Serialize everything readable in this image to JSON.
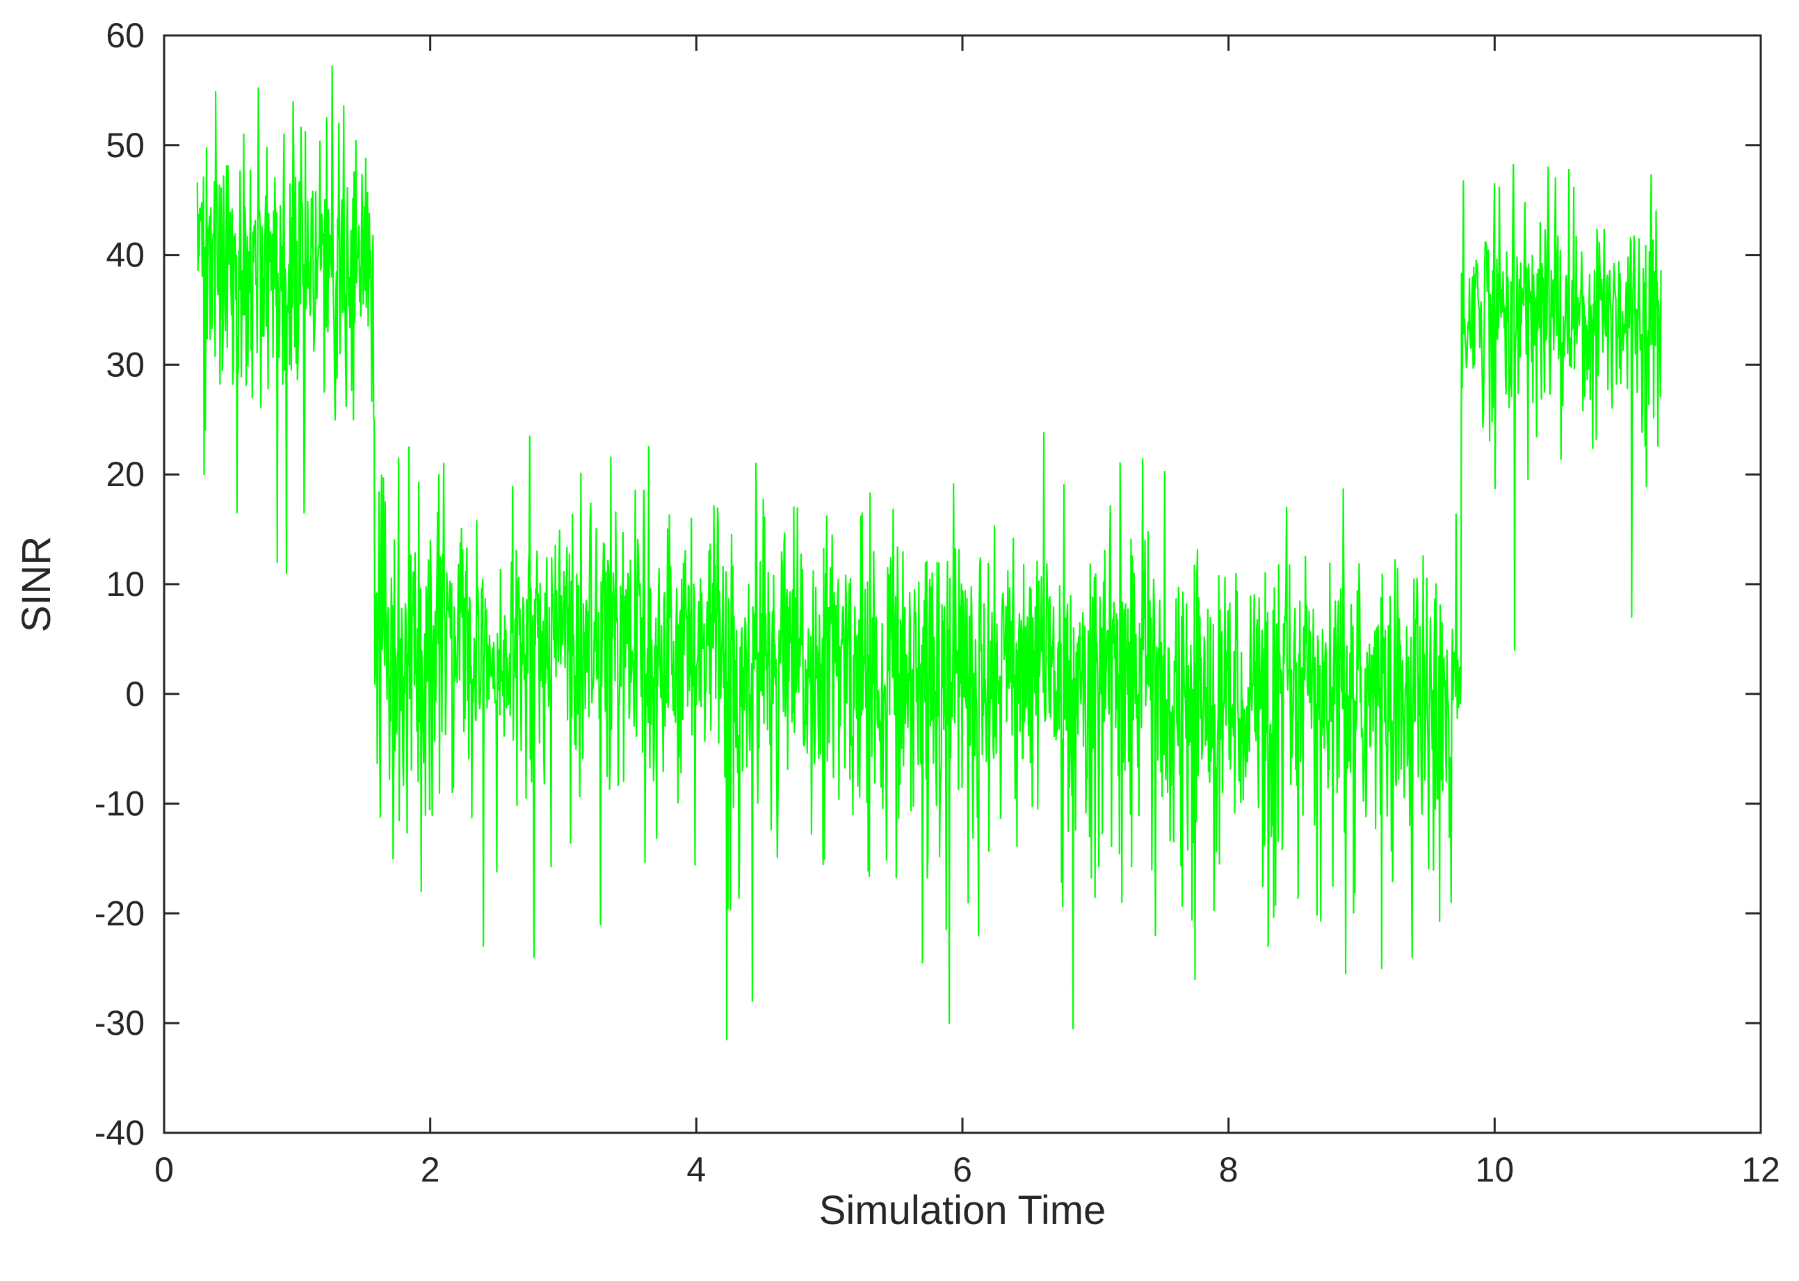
{
  "chart_data": {
    "type": "line",
    "title": "",
    "xlabel": "Simulation Time",
    "ylabel": "SINR",
    "xlim": [
      0,
      12
    ],
    "ylim": [
      -40,
      60
    ],
    "x_ticks": [
      0,
      2,
      4,
      6,
      8,
      10,
      12
    ],
    "y_ticks": [
      -40,
      -30,
      -20,
      -10,
      0,
      10,
      20,
      30,
      40,
      50,
      60
    ],
    "grid": false,
    "legend": "none",
    "series_color": "#00ff00",
    "axes_color": "#262626",
    "series": [
      {
        "x_start": 0.25,
        "x_end": 11.25,
        "segments": [
          {
            "x_from": 0.25,
            "x_to": 1.58,
            "mean_sinr": 40,
            "spread": 6.5
          },
          {
            "x_from": 1.58,
            "x_to": 1.65,
            "mean_sinr": 8,
            "spread": 8
          },
          {
            "x_from": 1.65,
            "x_to": 4.2,
            "mean_sinr": 5,
            "spread": 7.5
          },
          {
            "x_from": 4.2,
            "x_to": 7.5,
            "mean_sinr": 2.5,
            "spread": 7.5
          },
          {
            "x_from": 7.5,
            "x_to": 9.75,
            "mean_sinr": 0,
            "spread": 7
          },
          {
            "x_from": 9.75,
            "x_to": 11.25,
            "mean_sinr": 35,
            "spread": 5.5
          }
        ],
        "peaks": [
          {
            "x": 0.3,
            "y": 51
          },
          {
            "x": 0.6,
            "y": 51
          },
          {
            "x": 0.9,
            "y": 51
          },
          {
            "x": 1.22,
            "y": 52.5
          },
          {
            "x": 1.84,
            "y": 22.5
          },
          {
            "x": 2.1,
            "y": 21
          },
          {
            "x": 4.45,
            "y": 21
          },
          {
            "x": 10.0,
            "y": 46.5
          },
          {
            "x": 10.4,
            "y": 48
          }
        ],
        "troughs": [
          {
            "x": 0.3,
            "y": 20
          },
          {
            "x": 0.55,
            "y": 16.5
          },
          {
            "x": 0.85,
            "y": 12
          },
          {
            "x": 0.92,
            "y": 11
          },
          {
            "x": 1.05,
            "y": 16.5
          },
          {
            "x": 1.72,
            "y": -15
          },
          {
            "x": 1.93,
            "y": -18
          },
          {
            "x": 2.4,
            "y": -23
          },
          {
            "x": 2.78,
            "y": -24
          },
          {
            "x": 3.28,
            "y": -21
          },
          {
            "x": 4.23,
            "y": -31.5
          },
          {
            "x": 4.42,
            "y": -28
          },
          {
            "x": 5.7,
            "y": -24.5
          },
          {
            "x": 5.9,
            "y": -30
          },
          {
            "x": 6.12,
            "y": -22
          },
          {
            "x": 6.83,
            "y": -30.5
          },
          {
            "x": 7.45,
            "y": -22
          },
          {
            "x": 7.75,
            "y": -26
          },
          {
            "x": 8.3,
            "y": -23
          },
          {
            "x": 8.88,
            "y": -25.5
          },
          {
            "x": 9.15,
            "y": -25
          },
          {
            "x": 9.38,
            "y": -24
          },
          {
            "x": 10.15,
            "y": 4
          },
          {
            "x": 11.03,
            "y": 7
          }
        ]
      }
    ]
  }
}
